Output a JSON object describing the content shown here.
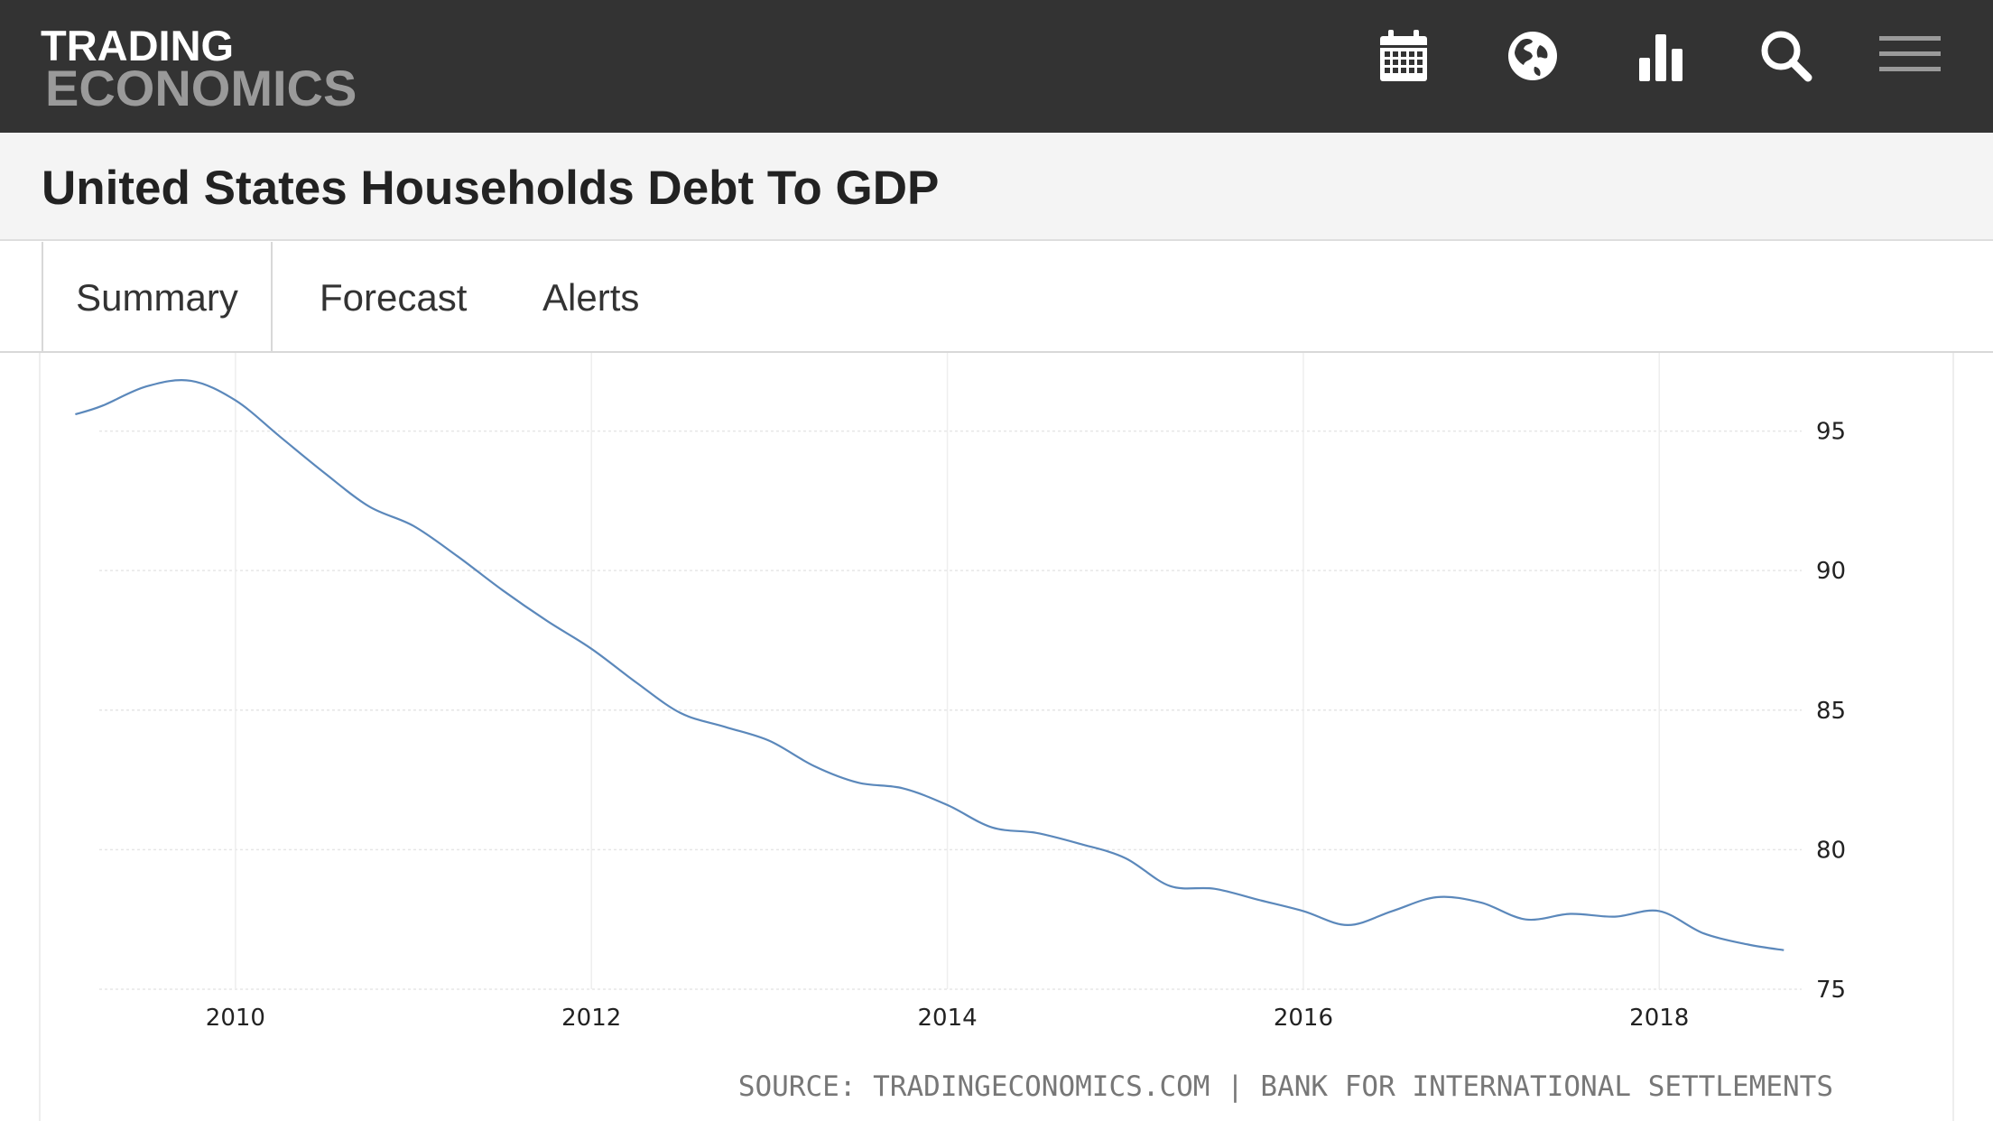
{
  "header": {
    "logo_line1": "TRADING",
    "logo_line2": "ECONOMICS",
    "background": "#333333",
    "icons": [
      "calendar-icon",
      "globe-icon",
      "bar-chart-icon",
      "search-icon",
      "hamburger-menu-icon"
    ]
  },
  "page": {
    "title": "United States Households Debt To GDP"
  },
  "tabs": [
    {
      "label": "Summary",
      "active": true
    },
    {
      "label": "Forecast",
      "active": false
    },
    {
      "label": "Alerts",
      "active": false
    }
  ],
  "source_text": "SOURCE: TRADINGECONOMICS.COM | BANK FOR INTERNATIONAL SETTLEMENTS",
  "chart_data": {
    "type": "line",
    "title": "",
    "xlabel": "",
    "ylabel": "",
    "xlim": [
      2008.9,
      2018.8
    ],
    "ylim": [
      75,
      97.8
    ],
    "x_ticks": [
      2010,
      2012,
      2014,
      2016,
      2018
    ],
    "y_ticks": [
      75,
      80,
      85,
      90,
      95
    ],
    "y_axis_side": "right",
    "grid": true,
    "legend": "none",
    "line_color": "#5b88bb",
    "series": [
      {
        "x": [
          2009.1,
          2009.25,
          2009.5,
          2009.75,
          2010.0,
          2010.25,
          2010.5,
          2010.75,
          2011.0,
          2011.25,
          2011.5,
          2011.75,
          2012.0,
          2012.25,
          2012.5,
          2012.75,
          2013.0,
          2013.25,
          2013.5,
          2013.75,
          2014.0,
          2014.25,
          2014.5,
          2014.75,
          2015.0,
          2015.25,
          2015.5,
          2015.75,
          2016.0,
          2016.25,
          2016.5,
          2016.75,
          2017.0,
          2017.25,
          2017.5,
          2017.75,
          2018.0,
          2018.25,
          2018.5,
          2018.7
        ],
        "y": [
          95.6,
          95.9,
          96.6,
          96.8,
          96.1,
          94.8,
          93.5,
          92.3,
          91.6,
          90.5,
          89.3,
          88.2,
          87.2,
          86.0,
          84.9,
          84.4,
          83.9,
          83.0,
          82.4,
          82.2,
          81.6,
          80.8,
          80.6,
          80.2,
          79.7,
          78.7,
          78.6,
          78.2,
          77.8,
          77.3,
          77.8,
          78.3,
          78.1,
          77.5,
          77.7,
          77.6,
          77.8,
          77.0,
          76.6,
          76.4
        ]
      }
    ]
  }
}
